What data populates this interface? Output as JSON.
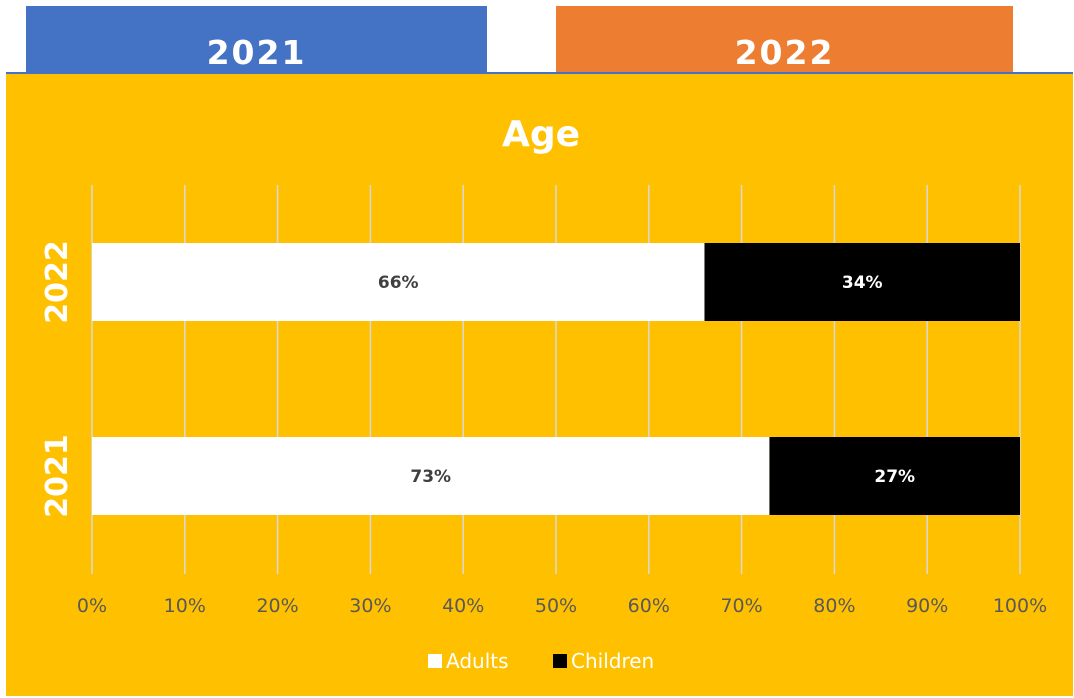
{
  "tabs": [
    {
      "label": "2021",
      "color": "#4472c4"
    },
    {
      "label": "2022",
      "color": "#ed7d31"
    }
  ],
  "chart_data": {
    "type": "bar",
    "orientation": "horizontal",
    "stacked": "percent",
    "title": "Age",
    "categories": [
      "2022",
      "2021"
    ],
    "series": [
      {
        "name": "Adults",
        "values": [
          66,
          73
        ],
        "color": "#ffffff",
        "labels": [
          "66%",
          "73%"
        ]
      },
      {
        "name": "Children",
        "values": [
          34,
          27
        ],
        "color": "#000000",
        "labels": [
          "34%",
          "27%"
        ]
      }
    ],
    "xlim": [
      0,
      100
    ],
    "xticks": [
      "0%",
      "10%",
      "20%",
      "30%",
      "40%",
      "50%",
      "60%",
      "70%",
      "80%",
      "90%",
      "100%"
    ],
    "grid": true,
    "legend": "bottom",
    "background": "#ffc000"
  }
}
